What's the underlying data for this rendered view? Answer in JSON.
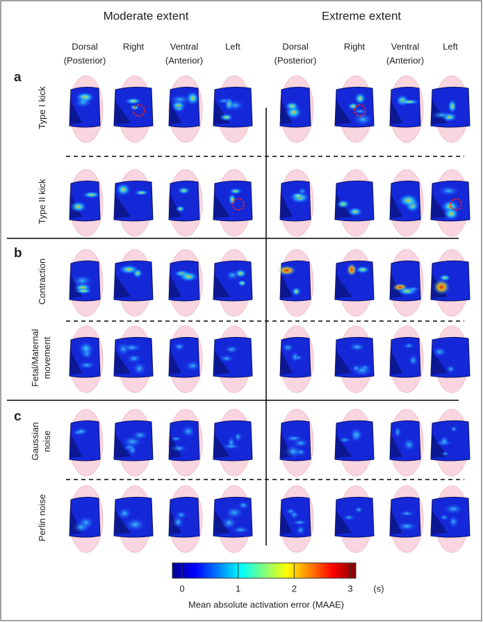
{
  "column_groups": [
    {
      "title": "Moderate extent"
    },
    {
      "title": "Extreme extent"
    }
  ],
  "views": [
    [
      "Dorsal",
      "(Posterior)"
    ],
    [
      "Right"
    ],
    [
      "Ventral",
      "(Anterior)"
    ],
    [
      "Left"
    ]
  ],
  "panels": [
    {
      "letter": "a",
      "rows": [
        {
          "label": [
            "Type I kick"
          ]
        },
        {
          "label": [
            "Type II kick"
          ]
        }
      ]
    },
    {
      "letter": "b",
      "rows": [
        {
          "label": [
            "Contraction"
          ]
        },
        {
          "label": [
            "Fetal/Maternal",
            "movement"
          ]
        }
      ]
    },
    {
      "letter": "c",
      "rows": [
        {
          "label": [
            "Gaussian",
            "noise"
          ]
        },
        {
          "label": [
            "Perlin noise"
          ]
        }
      ]
    }
  ],
  "colorbar": {
    "lim": [
      0,
      3
    ],
    "ticks": [
      0,
      1,
      2,
      3
    ],
    "unit": "(s)",
    "label": "Mean absolute activation error (MAAE)"
  }
}
